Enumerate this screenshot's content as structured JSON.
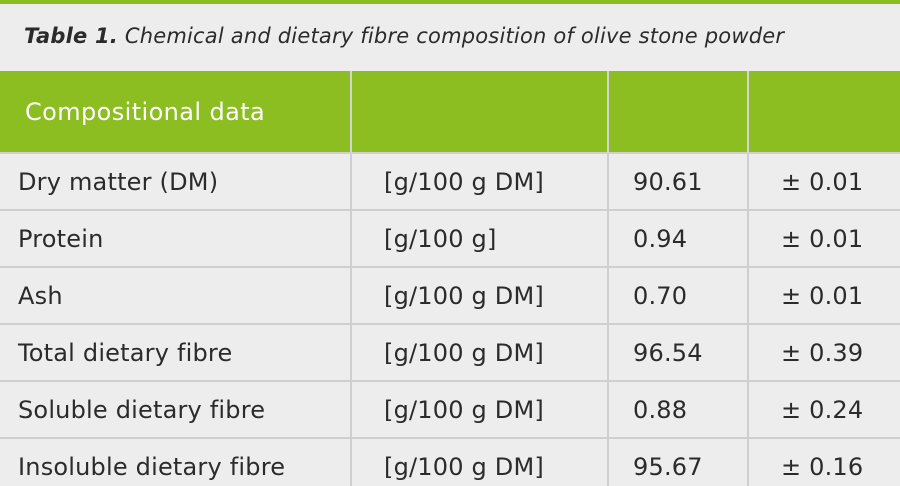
{
  "caption": {
    "label": "Table 1.",
    "text": "Chemical and dietary fibre composition of olive stone powder"
  },
  "table": {
    "header": [
      "Compositional data",
      "",
      "",
      ""
    ],
    "rows": [
      {
        "name": "Dry matter (DM)",
        "unit": "[g/100 g DM]",
        "value": "90.61",
        "error": "± 0.01"
      },
      {
        "name": "Protein",
        "unit": "[g/100 g]",
        "value": "0.94",
        "error": "± 0.01"
      },
      {
        "name": "Ash",
        "unit": "[g/100 g DM]",
        "value": "0.70",
        "error": "± 0.01"
      },
      {
        "name": "Total dietary fibre",
        "unit": "[g/100 g DM]",
        "value": "96.54",
        "error": "± 0.39"
      },
      {
        "name": "Soluble dietary fibre",
        "unit": "[g/100 g DM]",
        "value": "0.88",
        "error": "± 0.24"
      },
      {
        "name": "Insoluble dietary fibre",
        "unit": "[g/100 g DM]",
        "value": "95.67",
        "error": "± 0.16"
      }
    ]
  },
  "colors": {
    "accent": "#8cbd21",
    "background": "#ededed",
    "text": "#2b2b2b",
    "grid": "#cfcfcf"
  }
}
